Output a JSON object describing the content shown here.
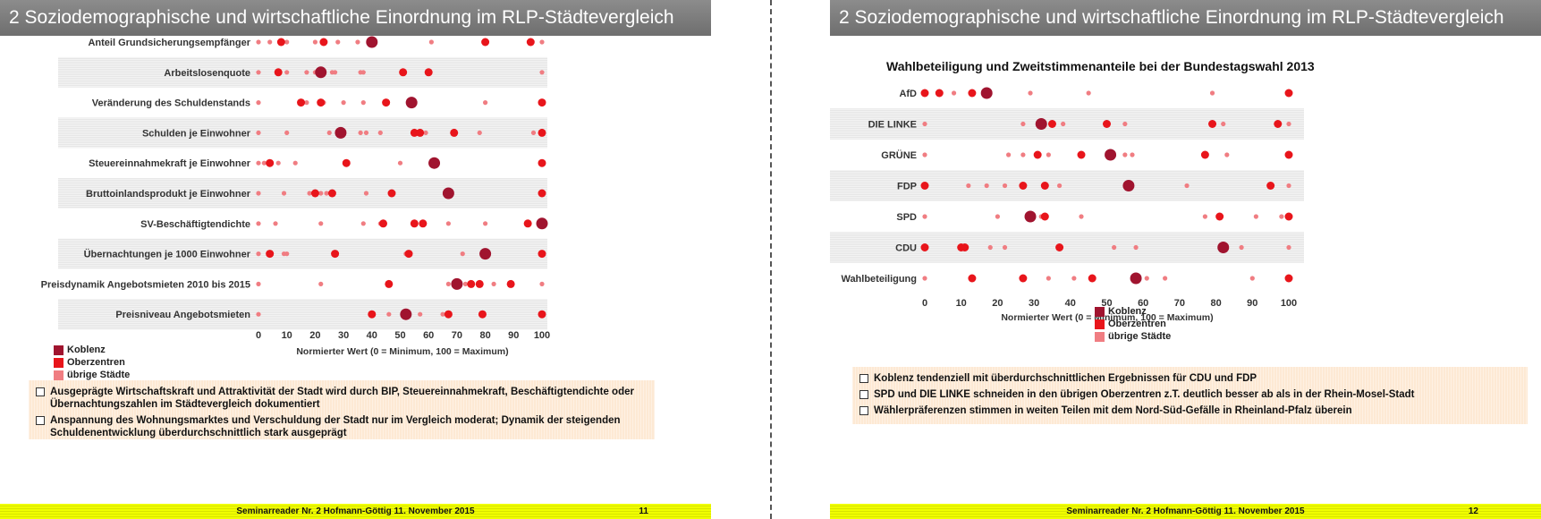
{
  "colors": {
    "koblenz": "#a0142f",
    "oberzentren": "#e8151b",
    "uebrige": "#f07d82",
    "stripe": "#e6e6e6"
  },
  "slides": [
    {
      "title": "2 Soziodemographische und wirtschaftliche Einordnung im RLP-Städtevergleich",
      "chart_title": "",
      "xlabel": "Normierter Wert (0 = Minimum, 100 = Maximum)",
      "notes": [
        "Ausgeprägte Wirtschaftskraft  und Attraktivität der Stadt wird durch BIP, Steuereinnahmekraft, Beschäftigtendichte oder Übernachtungszahlen im Städtevergleich dokumentiert",
        "Anspannung des Wohnungsmarktes und Verschuldung der Stadt nur im Vergleich moderat; Dynamik der steigenden Schuldenentwicklung überdurchschnittlich stark ausgeprägt"
      ],
      "footer": "Seminarreader Nr. 2 Hofmann-Göttig 11. November 2015",
      "page": "11"
    },
    {
      "title": "2 Soziodemographische und wirtschaftliche Einordnung im RLP-Städtevergleich",
      "chart_title": "Wahlbeteiligung und Zweitstimmenanteile bei der Bundestagswahl 2013",
      "xlabel": "Normierter Wert (0 = Minimum, 100 = Maximum)",
      "notes": [
        "Koblenz tendenziell mit überdurchschnittlichen Ergebnissen für CDU und FDP",
        "SPD und DIE LINKE schneiden in den übrigen Oberzentren z.T. deutlich besser ab als in der Rhein-Mosel-Stadt",
        "Wählerpräferenzen stimmen in weiten Teilen mit dem Nord-Süd-Gefälle in Rheinland-Pfalz überein"
      ],
      "footer": "Seminarreader Nr. 2 Hofmann-Göttig 11. November 2015",
      "page": "12"
    }
  ],
  "chart_data": [
    {
      "type": "scatter",
      "title": "",
      "xlabel": "Normierter Wert (0 = Minimum, 100 = Maximum)",
      "xlim": [
        0,
        100
      ],
      "xticks": [
        0,
        10,
        20,
        30,
        40,
        50,
        60,
        70,
        80,
        90,
        100
      ],
      "legend": {
        "placement": "bottom-left",
        "entries": [
          "Koblenz",
          "Oberzentren",
          "übrige Städte"
        ]
      },
      "categories": [
        {
          "label": "Anteil Grundsicherungsempfänger",
          "koblenz": 40,
          "oberzentren": [
            8,
            23,
            80,
            96
          ],
          "uebrige": [
            0,
            4,
            10,
            20,
            28,
            35,
            61,
            100
          ]
        },
        {
          "label": "Arbeitslosenquote",
          "koblenz": 22,
          "oberzentren": [
            7,
            51,
            60
          ],
          "uebrige": [
            0,
            10,
            17,
            20,
            26,
            27,
            36,
            37,
            100
          ]
        },
        {
          "label": "Veränderung des Schuldenstands",
          "koblenz": 54,
          "oberzentren": [
            15,
            22,
            45,
            100
          ],
          "uebrige": [
            0,
            17,
            23,
            30,
            37,
            80
          ]
        },
        {
          "label": "Schulden je Einwohner",
          "koblenz": 29,
          "oberzentren": [
            55,
            57,
            69,
            100
          ],
          "uebrige": [
            0,
            10,
            25,
            36,
            38,
            43,
            59,
            78,
            97
          ]
        },
        {
          "label": "Steuereinnahmekraft je Einwohner",
          "koblenz": 62,
          "oberzentren": [
            4,
            31,
            100
          ],
          "uebrige": [
            0,
            2,
            7,
            13,
            50
          ]
        },
        {
          "label": "Bruttoinlandsprodukt je Einwohner",
          "koblenz": 67,
          "oberzentren": [
            20,
            26,
            47,
            100
          ],
          "uebrige": [
            0,
            9,
            18,
            22,
            24,
            38
          ]
        },
        {
          "label": "SV-Beschäftigtendichte",
          "koblenz": 100,
          "oberzentren": [
            44,
            55,
            58,
            95
          ],
          "uebrige": [
            0,
            6,
            22,
            37,
            43,
            67,
            80
          ]
        },
        {
          "label": "Übernachtungen je 1000 Einwohner",
          "koblenz": 80,
          "oberzentren": [
            4,
            27,
            53,
            100
          ],
          "uebrige": [
            0,
            9,
            10,
            52,
            72
          ]
        },
        {
          "label": "Preisdynamik Angebotsmieten 2010 bis 2015",
          "koblenz": 70,
          "oberzentren": [
            46,
            75,
            78,
            89
          ],
          "uebrige": [
            0,
            22,
            67,
            73,
            83,
            100
          ]
        },
        {
          "label": "Preisniveau Angebotsmieten",
          "koblenz": 52,
          "oberzentren": [
            40,
            67,
            79,
            100
          ],
          "uebrige": [
            0,
            46,
            57,
            65
          ]
        }
      ]
    },
    {
      "type": "scatter",
      "title": "Wahlbeteiligung und Zweitstimmenanteile bei der Bundestagswahl 2013",
      "xlabel": "Normierter Wert (0 = Minimum, 100 = Maximum)",
      "xlim": [
        0,
        100
      ],
      "xticks": [
        0,
        10,
        20,
        30,
        40,
        50,
        60,
        70,
        80,
        90,
        100
      ],
      "legend": {
        "placement": "bottom-left",
        "entries": [
          "Koblenz",
          "Oberzentren",
          "übrige Städte"
        ]
      },
      "categories": [
        {
          "label": "AfD",
          "koblenz": 17,
          "oberzentren": [
            0,
            4,
            13,
            100
          ],
          "uebrige": [
            8,
            29,
            45,
            79
          ]
        },
        {
          "label": "DIE LINKE",
          "koblenz": 32,
          "oberzentren": [
            35,
            50,
            79,
            97
          ],
          "uebrige": [
            0,
            27,
            38,
            55,
            82,
            100
          ]
        },
        {
          "label": "GRÜNE",
          "koblenz": 51,
          "oberzentren": [
            31,
            43,
            77,
            100
          ],
          "uebrige": [
            0,
            23,
            27,
            34,
            55,
            57,
            83
          ]
        },
        {
          "label": "FDP",
          "koblenz": 56,
          "oberzentren": [
            0,
            27,
            33,
            95
          ],
          "uebrige": [
            12,
            17,
            22,
            37,
            72,
            100
          ]
        },
        {
          "label": "SPD",
          "koblenz": 29,
          "oberzentren": [
            33,
            81,
            100
          ],
          "uebrige": [
            0,
            20,
            32,
            43,
            77,
            91,
            98
          ]
        },
        {
          "label": "CDU",
          "koblenz": 82,
          "oberzentren": [
            0,
            10,
            11,
            37
          ],
          "uebrige": [
            18,
            22,
            52,
            58,
            87,
            100
          ]
        },
        {
          "label": "Wahlbeteiligung",
          "koblenz": 58,
          "oberzentren": [
            13,
            27,
            46,
            100
          ],
          "uebrige": [
            0,
            34,
            41,
            61,
            66,
            90
          ]
        }
      ]
    }
  ]
}
